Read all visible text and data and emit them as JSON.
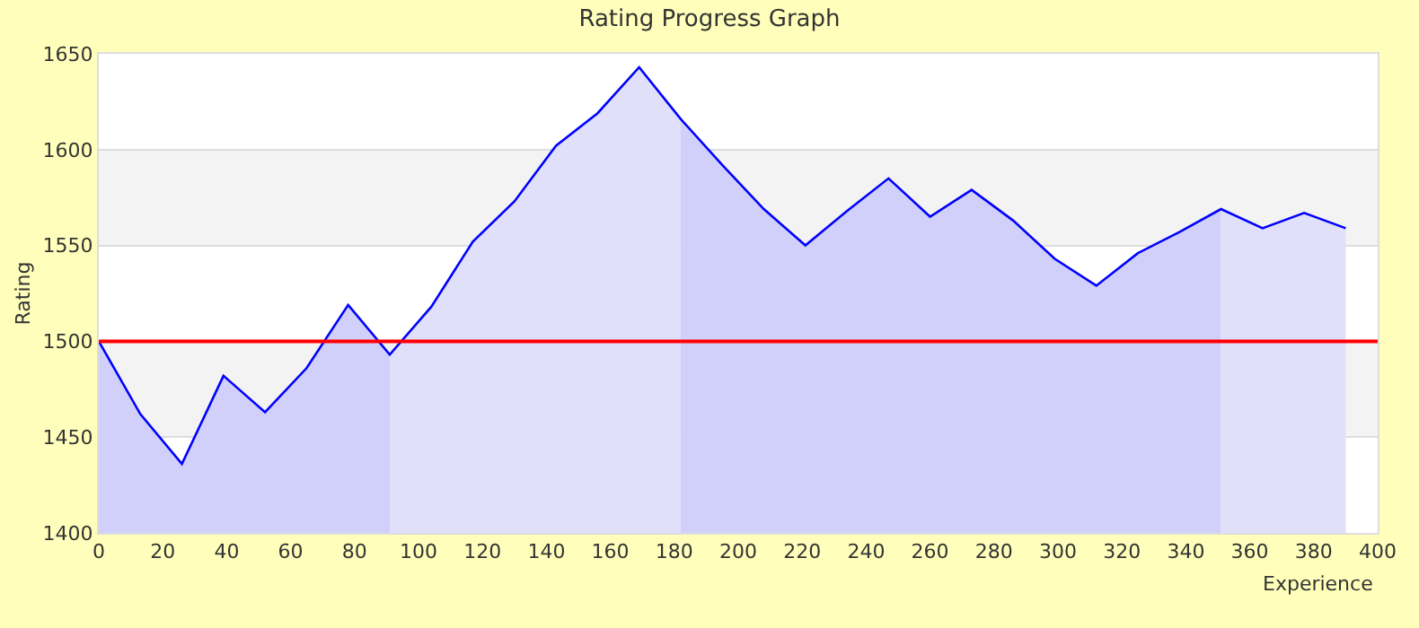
{
  "chart_data": {
    "type": "area",
    "title": "Rating Progress Graph",
    "xlabel": "Experience",
    "ylabel": "Rating",
    "xlim": [
      0,
      400
    ],
    "xticks": [
      0,
      20,
      40,
      60,
      80,
      100,
      120,
      140,
      160,
      180,
      200,
      220,
      240,
      260,
      280,
      300,
      320,
      340,
      360,
      380,
      400
    ],
    "ylim": [
      1400,
      1650
    ],
    "yticks": [
      1400,
      1450,
      1500,
      1550,
      1600,
      1650
    ],
    "grid": "y",
    "marker": "none",
    "line_style": "solid",
    "series": [
      {
        "color": "#d0d0fa",
        "x": [
          0,
          13,
          26,
          39,
          52,
          65,
          78,
          91
        ],
        "values": [
          1500,
          1462,
          1436,
          1482,
          1463,
          1486,
          1519,
          1493
        ]
      },
      {
        "color": "#e0e0fa",
        "x": [
          91,
          104,
          117,
          130,
          143,
          156,
          169,
          182
        ],
        "values": [
          1493,
          1518,
          1552,
          1573,
          1602,
          1619,
          1643,
          1616
        ]
      },
      {
        "color": "#d0d0fa",
        "x": [
          182,
          195,
          208,
          221,
          234,
          247,
          260,
          273,
          286,
          299,
          312,
          325,
          338,
          351
        ],
        "values": [
          1616,
          1592,
          1569,
          1550,
          1568,
          1585,
          1565,
          1579,
          1563,
          1543,
          1529,
          1546,
          1557,
          1569
        ]
      },
      {
        "color": "#e0e0fa",
        "x": [
          351,
          364,
          377,
          390
        ],
        "values": [
          1569,
          1559,
          1567,
          1559
        ]
      },
      {
        "type": "line",
        "color": "#0000ff",
        "x": [
          0,
          13,
          26,
          39,
          52,
          65,
          78,
          91,
          104,
          117,
          130,
          143,
          156,
          169,
          182,
          195,
          208,
          221,
          234,
          247,
          260,
          273,
          286,
          299,
          312,
          325,
          338,
          351,
          364,
          377,
          390
        ],
        "values": [
          1500,
          1462,
          1436,
          1482,
          1463,
          1486,
          1519,
          1493,
          1518,
          1552,
          1573,
          1602,
          1619,
          1643,
          1616,
          1592,
          1569,
          1550,
          1568,
          1585,
          1565,
          1579,
          1563,
          1543,
          1529,
          1546,
          1557,
          1569,
          1559,
          1567,
          1559
        ]
      }
    ],
    "ref_lines": [
      {
        "axis": "y",
        "value": 1500,
        "color": "#ff0000"
      }
    ],
    "bands": [
      {
        "axis": "y",
        "from": 1450,
        "to": 1500,
        "color": "#f3f3f3"
      },
      {
        "axis": "y",
        "from": 1550,
        "to": 1600,
        "color": "#f3f3f3"
      }
    ]
  }
}
